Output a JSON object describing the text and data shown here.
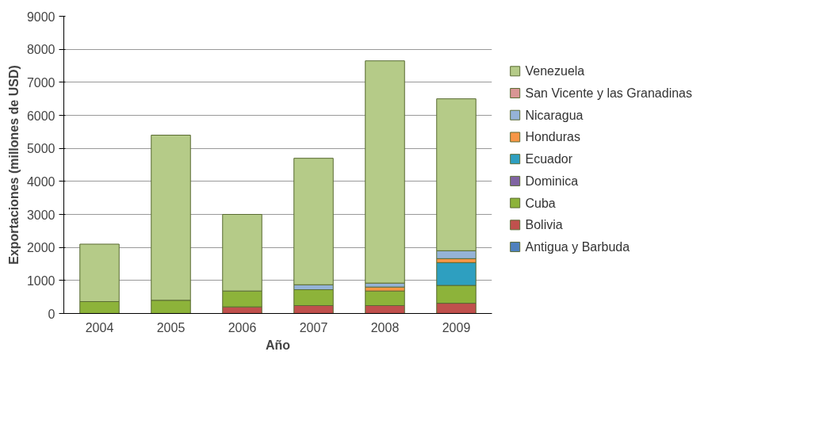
{
  "chart_data": {
    "type": "bar",
    "stacked": true,
    "xlabel": "Año",
    "ylabel": "Exportaciones (millones de USD)",
    "categories": [
      "2004",
      "2005",
      "2006",
      "2007",
      "2008",
      "2009"
    ],
    "series": [
      {
        "name": "Antigua y Barbuda",
        "color": "#4f81bd",
        "values": [
          0,
          0,
          0,
          0,
          0,
          0
        ]
      },
      {
        "name": "Bolivia",
        "color": "#c0504d",
        "values": [
          0,
          0,
          200,
          240,
          240,
          310
        ]
      },
      {
        "name": "Cuba",
        "color": "#8db33a",
        "values": [
          360,
          400,
          480,
          480,
          440,
          540
        ]
      },
      {
        "name": "Dominica",
        "color": "#8064a2",
        "values": [
          0,
          0,
          0,
          0,
          0,
          0
        ]
      },
      {
        "name": "Ecuador",
        "color": "#2e9fc0",
        "values": [
          0,
          0,
          0,
          0,
          0,
          690
        ]
      },
      {
        "name": "Honduras",
        "color": "#f79646",
        "values": [
          0,
          0,
          0,
          0,
          120,
          120
        ]
      },
      {
        "name": "Nicaragua",
        "color": "#95b3d7",
        "values": [
          0,
          0,
          0,
          150,
          120,
          240
        ]
      },
      {
        "name": "San Vicente y las Granadinas",
        "color": "#d99694",
        "values": [
          0,
          0,
          0,
          0,
          0,
          0
        ]
      },
      {
        "name": "Venezuela",
        "color": "#b5cb88",
        "values": [
          1740,
          5000,
          2320,
          3830,
          6730,
          4600
        ]
      }
    ],
    "ylim": [
      0,
      9000
    ],
    "yticks": [
      0,
      1000,
      2000,
      3000,
      4000,
      5000,
      6000,
      7000,
      8000,
      9000
    ],
    "grid": "y",
    "legend": "right"
  }
}
